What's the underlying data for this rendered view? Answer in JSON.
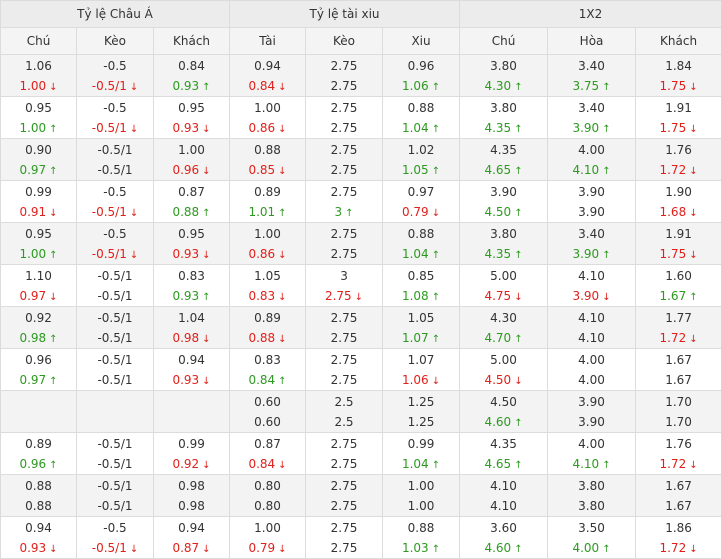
{
  "header": {
    "groups": [
      "Tỷ lệ Châu Á",
      "Tỷ lệ tài xiu",
      "1X2"
    ],
    "columns": [
      "Chú",
      "Kèo",
      "Khách",
      "Tài",
      "Kèo",
      "Xiu",
      "Chú",
      "Hòa",
      "Khách"
    ]
  },
  "arrows": {
    "up": "↑",
    "down": "↓"
  },
  "colors": {
    "down": "#e0201b",
    "up": "#2c9a1f",
    "header_bg": "#ececec",
    "alt_row_bg": "#f3f3f3",
    "border": "#dcdcdc"
  },
  "rows": [
    {
      "cells": [
        [
          {
            "v": "1.06",
            "t": ""
          },
          {
            "v": "1.00",
            "t": "down"
          }
        ],
        [
          {
            "v": "-0.5",
            "t": ""
          },
          {
            "v": "-0.5/1",
            "t": "down"
          }
        ],
        [
          {
            "v": "0.84",
            "t": ""
          },
          {
            "v": "0.93",
            "t": "up"
          }
        ],
        [
          {
            "v": "0.94",
            "t": ""
          },
          {
            "v": "0.84",
            "t": "down"
          }
        ],
        [
          {
            "v": "2.75",
            "t": ""
          },
          {
            "v": "2.75",
            "t": ""
          }
        ],
        [
          {
            "v": "0.96",
            "t": ""
          },
          {
            "v": "1.06",
            "t": "up"
          }
        ],
        [
          {
            "v": "3.80",
            "t": ""
          },
          {
            "v": "4.30",
            "t": "up"
          }
        ],
        [
          {
            "v": "3.40",
            "t": ""
          },
          {
            "v": "3.75",
            "t": "up"
          }
        ],
        [
          {
            "v": "1.84",
            "t": ""
          },
          {
            "v": "1.75",
            "t": "down"
          }
        ]
      ]
    },
    {
      "cells": [
        [
          {
            "v": "0.95",
            "t": ""
          },
          {
            "v": "1.00",
            "t": "up"
          }
        ],
        [
          {
            "v": "-0.5",
            "t": ""
          },
          {
            "v": "-0.5/1",
            "t": "down"
          }
        ],
        [
          {
            "v": "0.95",
            "t": ""
          },
          {
            "v": "0.93",
            "t": "down"
          }
        ],
        [
          {
            "v": "1.00",
            "t": ""
          },
          {
            "v": "0.86",
            "t": "down"
          }
        ],
        [
          {
            "v": "2.75",
            "t": ""
          },
          {
            "v": "2.75",
            "t": ""
          }
        ],
        [
          {
            "v": "0.88",
            "t": ""
          },
          {
            "v": "1.04",
            "t": "up"
          }
        ],
        [
          {
            "v": "3.80",
            "t": ""
          },
          {
            "v": "4.35",
            "t": "up"
          }
        ],
        [
          {
            "v": "3.40",
            "t": ""
          },
          {
            "v": "3.90",
            "t": "up"
          }
        ],
        [
          {
            "v": "1.91",
            "t": ""
          },
          {
            "v": "1.75",
            "t": "down"
          }
        ]
      ]
    },
    {
      "cells": [
        [
          {
            "v": "0.90",
            "t": ""
          },
          {
            "v": "0.97",
            "t": "up"
          }
        ],
        [
          {
            "v": "-0.5/1",
            "t": ""
          },
          {
            "v": "-0.5/1",
            "t": ""
          }
        ],
        [
          {
            "v": "1.00",
            "t": ""
          },
          {
            "v": "0.96",
            "t": "down"
          }
        ],
        [
          {
            "v": "0.88",
            "t": ""
          },
          {
            "v": "0.85",
            "t": "down"
          }
        ],
        [
          {
            "v": "2.75",
            "t": ""
          },
          {
            "v": "2.75",
            "t": ""
          }
        ],
        [
          {
            "v": "1.02",
            "t": ""
          },
          {
            "v": "1.05",
            "t": "up"
          }
        ],
        [
          {
            "v": "4.35",
            "t": ""
          },
          {
            "v": "4.65",
            "t": "up"
          }
        ],
        [
          {
            "v": "4.00",
            "t": ""
          },
          {
            "v": "4.10",
            "t": "up"
          }
        ],
        [
          {
            "v": "1.76",
            "t": ""
          },
          {
            "v": "1.72",
            "t": "down"
          }
        ]
      ]
    },
    {
      "cells": [
        [
          {
            "v": "0.99",
            "t": ""
          },
          {
            "v": "0.91",
            "t": "down"
          }
        ],
        [
          {
            "v": "-0.5",
            "t": ""
          },
          {
            "v": "-0.5/1",
            "t": "down"
          }
        ],
        [
          {
            "v": "0.87",
            "t": ""
          },
          {
            "v": "0.88",
            "t": "up"
          }
        ],
        [
          {
            "v": "0.89",
            "t": ""
          },
          {
            "v": "1.01",
            "t": "up"
          }
        ],
        [
          {
            "v": "2.75",
            "t": ""
          },
          {
            "v": "3",
            "t": "up"
          }
        ],
        [
          {
            "v": "0.97",
            "t": ""
          },
          {
            "v": "0.79",
            "t": "down"
          }
        ],
        [
          {
            "v": "3.90",
            "t": ""
          },
          {
            "v": "4.50",
            "t": "up"
          }
        ],
        [
          {
            "v": "3.90",
            "t": ""
          },
          {
            "v": "3.90",
            "t": ""
          }
        ],
        [
          {
            "v": "1.90",
            "t": ""
          },
          {
            "v": "1.68",
            "t": "down"
          }
        ]
      ]
    },
    {
      "cells": [
        [
          {
            "v": "0.95",
            "t": ""
          },
          {
            "v": "1.00",
            "t": "up"
          }
        ],
        [
          {
            "v": "-0.5",
            "t": ""
          },
          {
            "v": "-0.5/1",
            "t": "down"
          }
        ],
        [
          {
            "v": "0.95",
            "t": ""
          },
          {
            "v": "0.93",
            "t": "down"
          }
        ],
        [
          {
            "v": "1.00",
            "t": ""
          },
          {
            "v": "0.86",
            "t": "down"
          }
        ],
        [
          {
            "v": "2.75",
            "t": ""
          },
          {
            "v": "2.75",
            "t": ""
          }
        ],
        [
          {
            "v": "0.88",
            "t": ""
          },
          {
            "v": "1.04",
            "t": "up"
          }
        ],
        [
          {
            "v": "3.80",
            "t": ""
          },
          {
            "v": "4.35",
            "t": "up"
          }
        ],
        [
          {
            "v": "3.40",
            "t": ""
          },
          {
            "v": "3.90",
            "t": "up"
          }
        ],
        [
          {
            "v": "1.91",
            "t": ""
          },
          {
            "v": "1.75",
            "t": "down"
          }
        ]
      ]
    },
    {
      "cells": [
        [
          {
            "v": "1.10",
            "t": ""
          },
          {
            "v": "0.97",
            "t": "down"
          }
        ],
        [
          {
            "v": "-0.5/1",
            "t": ""
          },
          {
            "v": "-0.5/1",
            "t": ""
          }
        ],
        [
          {
            "v": "0.83",
            "t": ""
          },
          {
            "v": "0.93",
            "t": "up"
          }
        ],
        [
          {
            "v": "1.05",
            "t": ""
          },
          {
            "v": "0.83",
            "t": "down"
          }
        ],
        [
          {
            "v": "3",
            "t": ""
          },
          {
            "v": "2.75",
            "t": "down"
          }
        ],
        [
          {
            "v": "0.85",
            "t": ""
          },
          {
            "v": "1.08",
            "t": "up"
          }
        ],
        [
          {
            "v": "5.00",
            "t": ""
          },
          {
            "v": "4.75",
            "t": "down"
          }
        ],
        [
          {
            "v": "4.10",
            "t": ""
          },
          {
            "v": "3.90",
            "t": "down"
          }
        ],
        [
          {
            "v": "1.60",
            "t": ""
          },
          {
            "v": "1.67",
            "t": "up"
          }
        ]
      ]
    },
    {
      "cells": [
        [
          {
            "v": "0.92",
            "t": ""
          },
          {
            "v": "0.98",
            "t": "up"
          }
        ],
        [
          {
            "v": "-0.5/1",
            "t": ""
          },
          {
            "v": "-0.5/1",
            "t": ""
          }
        ],
        [
          {
            "v": "1.04",
            "t": ""
          },
          {
            "v": "0.98",
            "t": "down"
          }
        ],
        [
          {
            "v": "0.89",
            "t": ""
          },
          {
            "v": "0.88",
            "t": "down"
          }
        ],
        [
          {
            "v": "2.75",
            "t": ""
          },
          {
            "v": "2.75",
            "t": ""
          }
        ],
        [
          {
            "v": "1.05",
            "t": ""
          },
          {
            "v": "1.07",
            "t": "up"
          }
        ],
        [
          {
            "v": "4.30",
            "t": ""
          },
          {
            "v": "4.70",
            "t": "up"
          }
        ],
        [
          {
            "v": "4.10",
            "t": ""
          },
          {
            "v": "4.10",
            "t": ""
          }
        ],
        [
          {
            "v": "1.77",
            "t": ""
          },
          {
            "v": "1.72",
            "t": "down"
          }
        ]
      ]
    },
    {
      "cells": [
        [
          {
            "v": "0.96",
            "t": ""
          },
          {
            "v": "0.97",
            "t": "up"
          }
        ],
        [
          {
            "v": "-0.5/1",
            "t": ""
          },
          {
            "v": "-0.5/1",
            "t": ""
          }
        ],
        [
          {
            "v": "0.94",
            "t": ""
          },
          {
            "v": "0.93",
            "t": "down"
          }
        ],
        [
          {
            "v": "0.83",
            "t": ""
          },
          {
            "v": "0.84",
            "t": "up"
          }
        ],
        [
          {
            "v": "2.75",
            "t": ""
          },
          {
            "v": "2.75",
            "t": ""
          }
        ],
        [
          {
            "v": "1.07",
            "t": ""
          },
          {
            "v": "1.06",
            "t": "down"
          }
        ],
        [
          {
            "v": "5.00",
            "t": ""
          },
          {
            "v": "4.50",
            "t": "down"
          }
        ],
        [
          {
            "v": "4.00",
            "t": ""
          },
          {
            "v": "4.00",
            "t": ""
          }
        ],
        [
          {
            "v": "1.67",
            "t": ""
          },
          {
            "v": "1.67",
            "t": ""
          }
        ]
      ]
    },
    {
      "cells": [
        [],
        [],
        [],
        [
          {
            "v": "0.60",
            "t": ""
          },
          {
            "v": "0.60",
            "t": ""
          }
        ],
        [
          {
            "v": "2.5",
            "t": ""
          },
          {
            "v": "2.5",
            "t": ""
          }
        ],
        [
          {
            "v": "1.25",
            "t": ""
          },
          {
            "v": "1.25",
            "t": ""
          }
        ],
        [
          {
            "v": "4.50",
            "t": ""
          },
          {
            "v": "4.60",
            "t": "up"
          }
        ],
        [
          {
            "v": "3.90",
            "t": ""
          },
          {
            "v": "3.90",
            "t": ""
          }
        ],
        [
          {
            "v": "1.70",
            "t": ""
          },
          {
            "v": "1.70",
            "t": ""
          }
        ]
      ]
    },
    {
      "cells": [
        [
          {
            "v": "0.89",
            "t": ""
          },
          {
            "v": "0.96",
            "t": "up"
          }
        ],
        [
          {
            "v": "-0.5/1",
            "t": ""
          },
          {
            "v": "-0.5/1",
            "t": ""
          }
        ],
        [
          {
            "v": "0.99",
            "t": ""
          },
          {
            "v": "0.92",
            "t": "down"
          }
        ],
        [
          {
            "v": "0.87",
            "t": ""
          },
          {
            "v": "0.84",
            "t": "down"
          }
        ],
        [
          {
            "v": "2.75",
            "t": ""
          },
          {
            "v": "2.75",
            "t": ""
          }
        ],
        [
          {
            "v": "0.99",
            "t": ""
          },
          {
            "v": "1.04",
            "t": "up"
          }
        ],
        [
          {
            "v": "4.35",
            "t": ""
          },
          {
            "v": "4.65",
            "t": "up"
          }
        ],
        [
          {
            "v": "4.00",
            "t": ""
          },
          {
            "v": "4.10",
            "t": "up"
          }
        ],
        [
          {
            "v": "1.76",
            "t": ""
          },
          {
            "v": "1.72",
            "t": "down"
          }
        ]
      ]
    },
    {
      "cells": [
        [
          {
            "v": "0.88",
            "t": ""
          },
          {
            "v": "0.88",
            "t": ""
          }
        ],
        [
          {
            "v": "-0.5/1",
            "t": ""
          },
          {
            "v": "-0.5/1",
            "t": ""
          }
        ],
        [
          {
            "v": "0.98",
            "t": ""
          },
          {
            "v": "0.98",
            "t": ""
          }
        ],
        [
          {
            "v": "0.80",
            "t": ""
          },
          {
            "v": "0.80",
            "t": ""
          }
        ],
        [
          {
            "v": "2.75",
            "t": ""
          },
          {
            "v": "2.75",
            "t": ""
          }
        ],
        [
          {
            "v": "1.00",
            "t": ""
          },
          {
            "v": "1.00",
            "t": ""
          }
        ],
        [
          {
            "v": "4.10",
            "t": ""
          },
          {
            "v": "4.10",
            "t": ""
          }
        ],
        [
          {
            "v": "3.80",
            "t": ""
          },
          {
            "v": "3.80",
            "t": ""
          }
        ],
        [
          {
            "v": "1.67",
            "t": ""
          },
          {
            "v": "1.67",
            "t": ""
          }
        ]
      ]
    },
    {
      "cells": [
        [
          {
            "v": "0.94",
            "t": ""
          },
          {
            "v": "0.93",
            "t": "down"
          }
        ],
        [
          {
            "v": "-0.5",
            "t": ""
          },
          {
            "v": "-0.5/1",
            "t": "down"
          }
        ],
        [
          {
            "v": "0.94",
            "t": ""
          },
          {
            "v": "0.87",
            "t": "down"
          }
        ],
        [
          {
            "v": "1.00",
            "t": ""
          },
          {
            "v": "0.79",
            "t": "down"
          }
        ],
        [
          {
            "v": "2.75",
            "t": ""
          },
          {
            "v": "2.75",
            "t": ""
          }
        ],
        [
          {
            "v": "0.88",
            "t": ""
          },
          {
            "v": "1.03",
            "t": "up"
          }
        ],
        [
          {
            "v": "3.60",
            "t": ""
          },
          {
            "v": "4.60",
            "t": "up"
          }
        ],
        [
          {
            "v": "3.50",
            "t": ""
          },
          {
            "v": "4.00",
            "t": "up"
          }
        ],
        [
          {
            "v": "1.86",
            "t": ""
          },
          {
            "v": "1.72",
            "t": "down"
          }
        ]
      ]
    }
  ]
}
